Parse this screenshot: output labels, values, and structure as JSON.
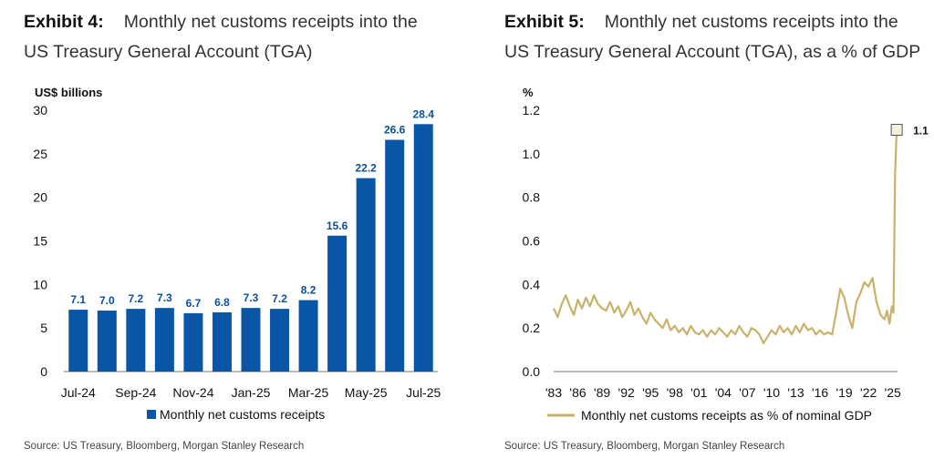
{
  "exhibit4": {
    "label": "Exhibit 4:",
    "title_line1": "Monthly net customs receipts into the",
    "title_line2": "US Treasury General Account (TGA)",
    "source": "Source: US Treasury, Bloomberg, Morgan Stanley Research"
  },
  "exhibit5": {
    "label": "Exhibit 5:",
    "title_line1": "Monthly net customs receipts into the",
    "title_line2": "US Treasury General Account (TGA), as a % of GDP",
    "source": "Source: US Treasury, Bloomberg, Morgan Stanley Research"
  },
  "colors": {
    "bar": "#0a56a6",
    "line": "#c9b26a",
    "label": "#0a4f9c"
  },
  "chart_data": [
    {
      "type": "bar",
      "ylabel": "US$ billions",
      "ylim": [
        0,
        30
      ],
      "yticks": [
        0,
        5,
        10,
        15,
        20,
        25,
        30
      ],
      "categories": [
        "Jul-24",
        "Aug-24",
        "Sep-24",
        "Oct-24",
        "Nov-24",
        "Dec-24",
        "Jan-25",
        "Feb-25",
        "Mar-25",
        "Apr-25",
        "May-25",
        "Jun-25",
        "Jul-25"
      ],
      "tick_labels": [
        "Jul-24",
        "",
        "Sep-24",
        "",
        "Nov-24",
        "",
        "Jan-25",
        "",
        "Mar-25",
        "",
        "May-25",
        "",
        "Jul-25"
      ],
      "series": [
        {
          "name": "Monthly net customs receipts",
          "values": [
            7.1,
            7.0,
            7.2,
            7.3,
            6.7,
            6.8,
            7.3,
            7.2,
            8.2,
            15.6,
            22.2,
            26.6,
            28.4
          ]
        }
      ],
      "data_labels": [
        "7.1",
        "7.0",
        "7.2",
        "7.3",
        "6.7",
        "6.8",
        "7.3",
        "7.2",
        "8.2",
        "15.6",
        "22.2",
        "26.6",
        "28.4"
      ],
      "legend": "bottom",
      "grid": false
    },
    {
      "type": "line",
      "ylabel": "%",
      "ylim": [
        0.0,
        1.2
      ],
      "yticks": [
        "0.0",
        "0.2",
        "0.4",
        "0.6",
        "0.8",
        "1.0",
        "1.2"
      ],
      "xlim": [
        1983,
        2025.6
      ],
      "xticks": [
        "'83",
        "'86",
        "'89",
        "'92",
        "'95",
        "'98",
        "'01",
        "'04",
        "'07",
        "'10",
        "'13",
        "'16",
        "'19",
        "'22",
        "'25"
      ],
      "series": [
        {
          "name": "Monthly net customs receipts as % of nominal GDP",
          "x": [
            1983,
            1983.5,
            1984,
            1984.5,
            1985,
            1985.5,
            1986,
            1986.5,
            1987,
            1987.5,
            1988,
            1988.5,
            1989,
            1989.5,
            1990,
            1990.5,
            1991,
            1991.5,
            1992,
            1992.5,
            1993,
            1993.5,
            1994,
            1994.5,
            1995,
            1995.5,
            1996,
            1996.5,
            1997,
            1997.5,
            1998,
            1998.5,
            1999,
            1999.5,
            2000,
            2000.5,
            2001,
            2001.5,
            2002,
            2002.5,
            2003,
            2003.5,
            2004,
            2004.5,
            2005,
            2005.5,
            2006,
            2006.5,
            2007,
            2007.5,
            2008,
            2008.5,
            2009,
            2009.5,
            2010,
            2010.5,
            2011,
            2011.5,
            2012,
            2012.5,
            2013,
            2013.5,
            2014,
            2014.5,
            2015,
            2015.5,
            2016,
            2016.5,
            2017,
            2017.5,
            2018,
            2018.5,
            2019,
            2019.5,
            2020,
            2020.5,
            2021,
            2021.5,
            2022,
            2022.5,
            2023,
            2023.5,
            2024,
            2024.3,
            2024.6,
            2024.9,
            2025.1,
            2025.3,
            2025.5
          ],
          "values": [
            0.29,
            0.25,
            0.31,
            0.35,
            0.3,
            0.26,
            0.33,
            0.29,
            0.34,
            0.3,
            0.35,
            0.31,
            0.29,
            0.28,
            0.32,
            0.27,
            0.3,
            0.25,
            0.28,
            0.32,
            0.26,
            0.29,
            0.25,
            0.22,
            0.27,
            0.24,
            0.22,
            0.2,
            0.24,
            0.19,
            0.21,
            0.18,
            0.2,
            0.17,
            0.21,
            0.18,
            0.17,
            0.19,
            0.16,
            0.19,
            0.17,
            0.2,
            0.18,
            0.16,
            0.19,
            0.17,
            0.21,
            0.18,
            0.16,
            0.2,
            0.19,
            0.17,
            0.13,
            0.16,
            0.19,
            0.17,
            0.21,
            0.18,
            0.2,
            0.17,
            0.21,
            0.18,
            0.22,
            0.19,
            0.2,
            0.17,
            0.19,
            0.17,
            0.18,
            0.17,
            0.27,
            0.38,
            0.34,
            0.26,
            0.2,
            0.32,
            0.36,
            0.41,
            0.39,
            0.43,
            0.32,
            0.26,
            0.24,
            0.28,
            0.22,
            0.3,
            0.27,
            0.9,
            1.11
          ]
        }
      ],
      "annotation": {
        "text": "1.1",
        "x": 2025.5,
        "y": 1.11
      },
      "legend": "bottom",
      "grid": false
    }
  ]
}
